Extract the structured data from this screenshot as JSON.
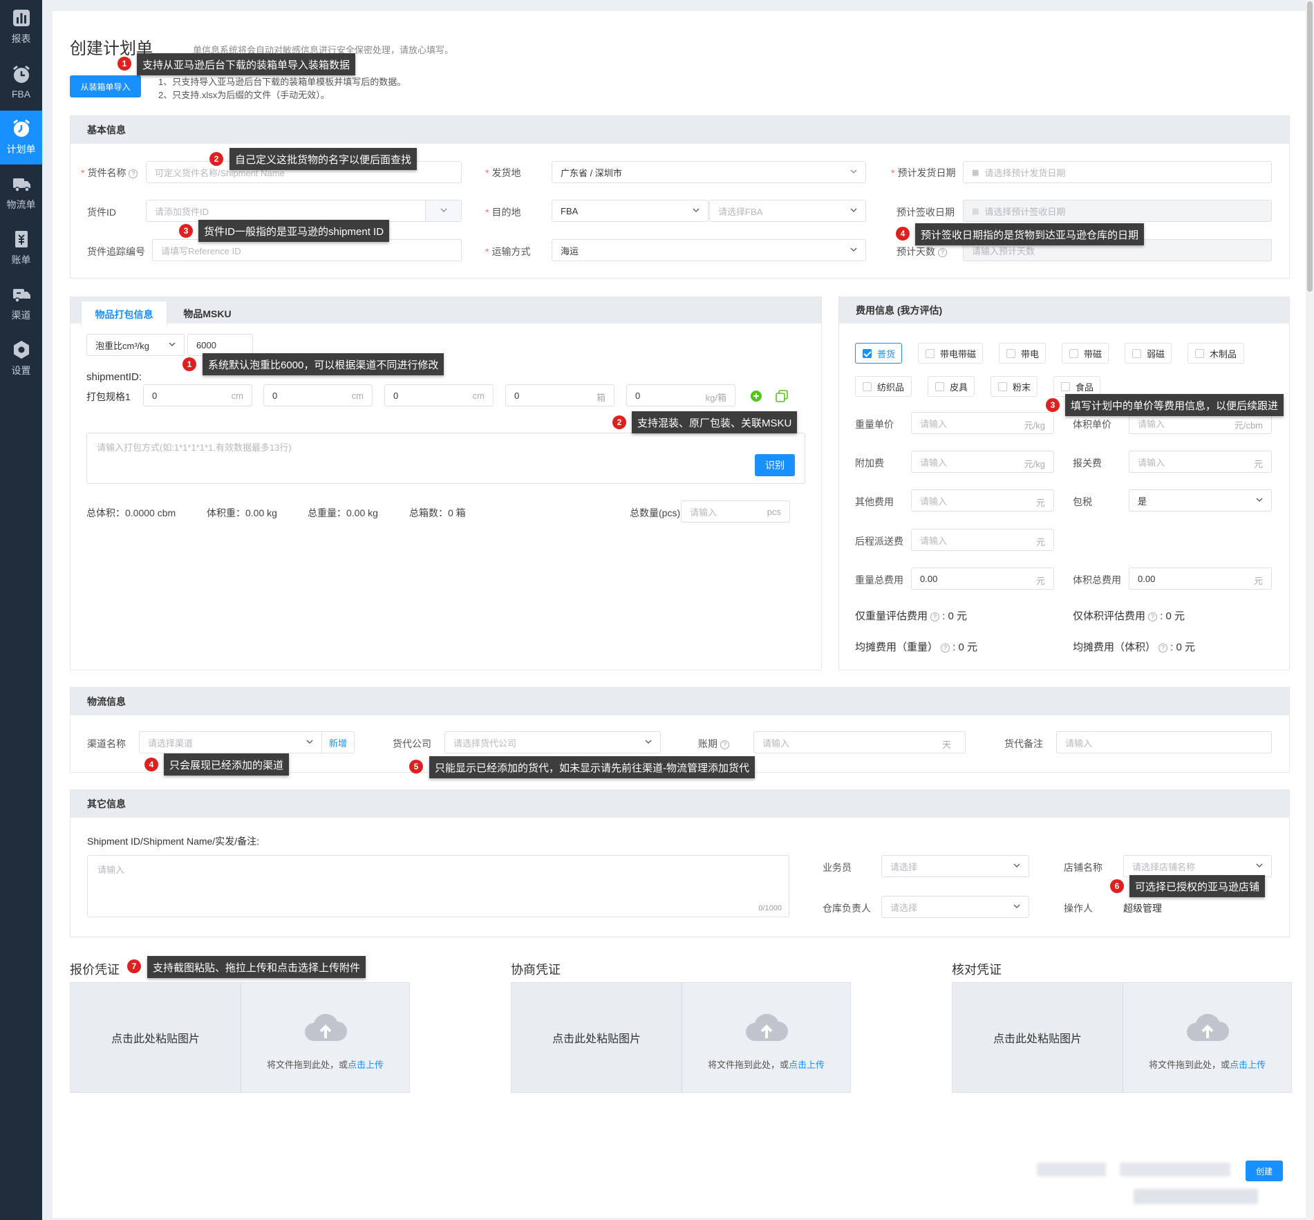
{
  "sidebar": {
    "items": [
      {
        "label": "报表",
        "icon": "chart-icon"
      },
      {
        "label": "FBA",
        "icon": "alarm-icon"
      },
      {
        "label": "计划单",
        "icon": "alarm-clock-icon"
      },
      {
        "label": "物流单",
        "icon": "truck-icon"
      },
      {
        "label": "账单",
        "icon": "bill-icon"
      },
      {
        "label": "渠道",
        "icon": "route-icon"
      },
      {
        "label": "设置",
        "icon": "hexagon-gear-icon"
      }
    ],
    "active_index": 2
  },
  "header": {
    "title": "创建计划单",
    "notice": "单信息系统将会自动对敏感信息进行安全保密处理，请放心填写。",
    "import_button": "从装箱单导入",
    "hint_1": "1、只支持导入亚马逊后台下载的装箱单模板并填写后的数据。",
    "hint_2": "2、只支持.xlsx为后缀的文件（手动无效）。"
  },
  "basic": {
    "heading": "基本信息",
    "goods_name_label": "货件名称",
    "goods_name_placeholder": "可定义货件名称/Shipment Name",
    "origin_label": "发货地",
    "origin_value": "广东省 / 深圳市",
    "ship_date_label": "预计发货日期",
    "ship_date_placeholder": "请选择预计发货日期",
    "shipment_id_label": "货件ID",
    "shipment_id_placeholder": "请添加货件ID",
    "dest_label": "目的地",
    "dest_value": "FBA",
    "dest_fba_placeholder": "请选择FBA",
    "sign_date_label": "预计签收日期",
    "sign_date_placeholder": "请选择预计签收日期",
    "tracking_label": "货件追踪编号",
    "tracking_placeholder": "请填写Reference ID",
    "transport_label": "运输方式",
    "transport_value": "海运",
    "days_label": "预计天数",
    "days_placeholder": "请输入预计天数"
  },
  "packing": {
    "tab_1": "物品打包信息",
    "tab_2": "物品MSKU",
    "ratio_select": "泡重比cm³/kg",
    "ratio_value": "6000",
    "shipment_label": "shipmentID:",
    "spec_label": "打包规格1",
    "spec_fields": [
      {
        "value": "0",
        "unit": "cm"
      },
      {
        "value": "0",
        "unit": "cm"
      },
      {
        "value": "0",
        "unit": "cm"
      },
      {
        "value": "0",
        "unit": "箱"
      },
      {
        "value": "0",
        "unit": "kg/箱"
      }
    ],
    "textarea_placeholder": "请输入打包方式(如:1*1*1*1*1,有效数据最多13行)",
    "recognize_button": "识别",
    "total_volume": "总体积：0.0000 cbm",
    "volume_weight": "体积重：0.00 kg",
    "total_weight": "总重量：0.00 kg",
    "total_boxes": "总箱数：0 箱",
    "total_qty_label": "总数量(pcs)",
    "total_qty_placeholder": "请输入",
    "total_qty_unit": "pcs"
  },
  "fees": {
    "heading": "费用信息 (我方评估)",
    "categories": [
      "普货",
      "带电带磁",
      "带电",
      "带磁",
      "弱磁",
      "木制品",
      "纺织品",
      "皮具",
      "粉末",
      "食品"
    ],
    "checked_index": 0,
    "weight_price_label": "重量单价",
    "volume_price_label": "体积单价",
    "surcharge_label": "附加费",
    "customs_label": "报关费",
    "other_label": "其他费用",
    "tax_label": "包税",
    "tax_value": "是",
    "delivery_label": "后程派送费",
    "weight_total_label": "重量总费用",
    "volume_total_label": "体积总费用",
    "input_placeholder": "请输入",
    "zero_value": "0.00",
    "unit_kg": "元/kg",
    "unit_cbm": "元/cbm",
    "unit_yuan": "元",
    "est_weight": "仅重量评估费用",
    "est_volume": "仅体积评估费用",
    "avg_weight": "均摊费用（重量）",
    "avg_volume": "均摊费用（体积）",
    "zero_yuan": ": 0 元"
  },
  "logistics": {
    "heading": "物流信息",
    "channel_label": "渠道名称",
    "channel_placeholder": "请选择渠道",
    "add_link": "新增",
    "forwarder_label": "货代公司",
    "forwarder_placeholder": "请选择货代公司",
    "term_label": "账期",
    "term_placeholder": "请输入",
    "term_unit": "天",
    "remark_label": "货代备注",
    "remark_placeholder": "请输入"
  },
  "other": {
    "heading": "其它信息",
    "note_label": "Shipment ID/Shipment Name/实发/备注:",
    "note_placeholder": "请输入",
    "note_counter": "0/1000",
    "sales_label": "业务员",
    "select_placeholder": "请选择",
    "store_label": "店铺名称",
    "store_placeholder": "请选择店铺名称",
    "warehouse_label": "仓库负责人",
    "operator_label": "操作人",
    "operator_value": "超级管理"
  },
  "vouchers": [
    {
      "title": "报价凭证",
      "paste": "点击此处粘贴图片",
      "drag": "将文件拖到此处，或",
      "upload": "点击上传"
    },
    {
      "title": "协商凭证",
      "paste": "点击此处粘贴图片",
      "drag": "将文件拖到此处，或",
      "upload": "点击上传"
    },
    {
      "title": "核对凭证",
      "paste": "点击此处粘贴图片",
      "drag": "将文件拖到此处，或",
      "upload": "点击上传"
    }
  ],
  "footer": {
    "create_button": "创建"
  },
  "tips": {
    "t1": "支持从亚马逊后台下载的装箱单导入装箱数据",
    "t2": "自己定义这批货物的名字以便后面查找",
    "t3": "货件ID一般指的是亚马逊的shipment ID",
    "t4": "预计签收日期指的是货物到达亚马逊仓库的日期",
    "t5": "系统默认泡重比6000，可以根据渠道不同进行修改",
    "t6": "支持混装、原厂包装、关联MSKU",
    "t7": "填写计划中的单价等费用信息，以便后续跟进",
    "t8": "只会展现已经添加的渠道",
    "t9": "只能显示已经添加的货代，如未显示请先前往渠道-物流管理添加货代",
    "t10": "可选择已授权的亚马逊店铺",
    "t11": "支持截图粘贴、拖拉上传和点击选择上传附件",
    "n1": "1",
    "n2": "2",
    "n3": "3",
    "n4": "4",
    "n5": "5",
    "n6": "6",
    "n7": "7"
  },
  "colors": {
    "accent": "#1890ff",
    "sidebar": "#1f2d3d",
    "tip_bg": "#3d3d3d",
    "badge": "#e02020"
  }
}
